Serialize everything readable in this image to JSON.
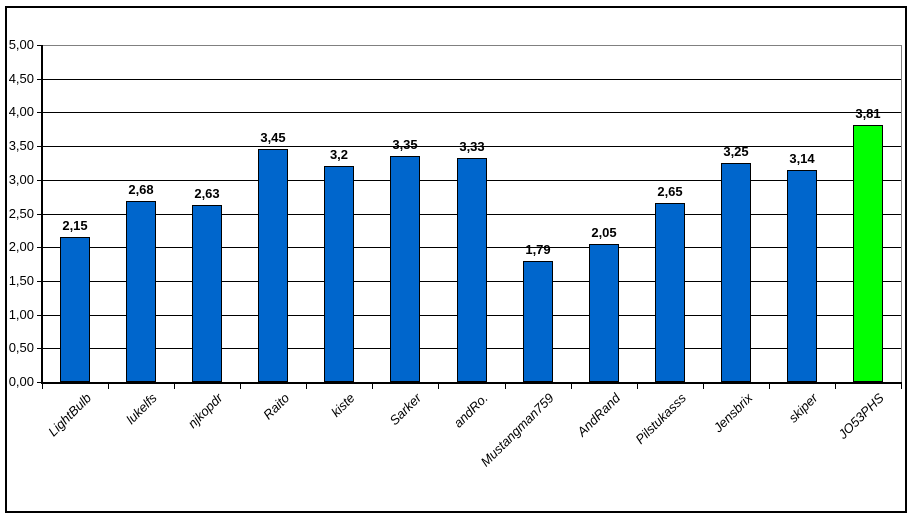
{
  "chart_data": {
    "type": "bar",
    "title": "",
    "xlabel": "",
    "ylabel": "",
    "categories": [
      "LightBulb",
      "lukelfs",
      "njkopdr",
      "Raito",
      "kiste",
      "Sarker",
      "andRo.",
      "Mustangman759",
      "AndRand",
      "Pilstukasss",
      "Jensbrix",
      "skiper",
      "JO53PHS"
    ],
    "values": [
      2.15,
      2.68,
      2.63,
      3.45,
      3.2,
      3.35,
      3.33,
      1.79,
      2.05,
      2.65,
      3.25,
      3.14,
      3.81
    ],
    "value_labels": [
      "2,15",
      "2,68",
      "2,63",
      "3,45",
      "3,2",
      "3,35",
      "3,33",
      "1,79",
      "2,05",
      "2,65",
      "3,25",
      "3,14",
      "3,81"
    ],
    "ylim": [
      0,
      5
    ],
    "ytick_step": 0.5,
    "ytick_labels": [
      "0,00",
      "0,50",
      "1,00",
      "1,50",
      "2,00",
      "2,50",
      "3,00",
      "3,50",
      "4,00",
      "4,50",
      "5,00"
    ],
    "grid": true,
    "legend": "none",
    "decimal_separator": ",",
    "bar_default_color": "#0066CC",
    "highlight": {
      "index": 12,
      "category": "JO53PHS",
      "color": "#00FF00"
    },
    "colors": {
      "bar_border": "#000000",
      "gridline": "#000000",
      "plot_border": "#808080",
      "axis": "#000000",
      "background": "#FFFFFF",
      "text": "#000000"
    }
  }
}
